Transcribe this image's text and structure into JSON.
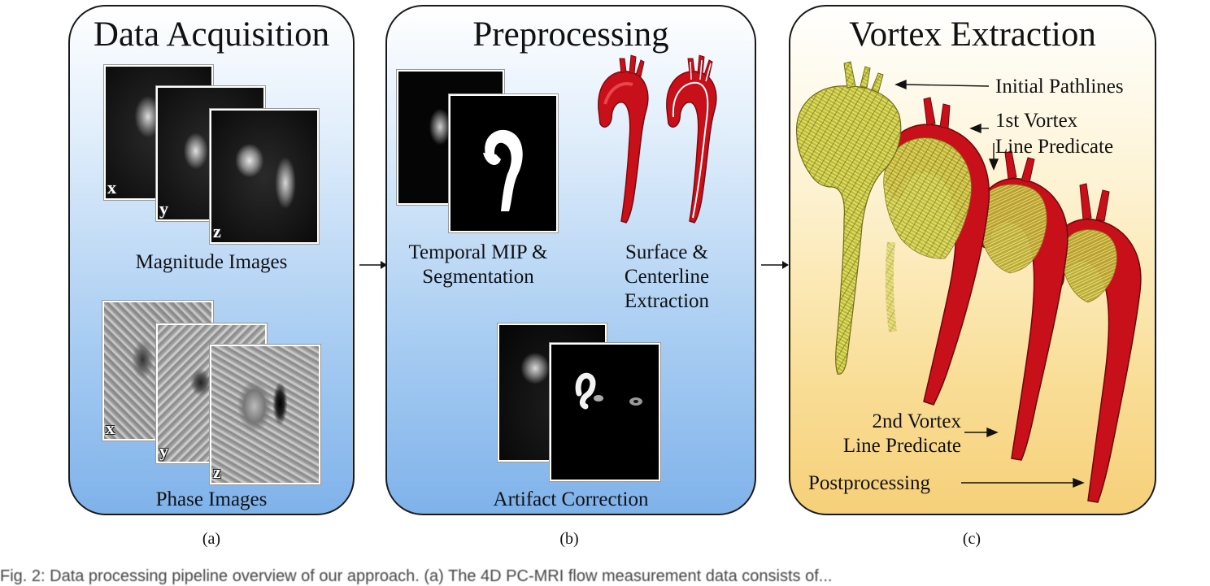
{
  "panels": {
    "a": {
      "title": "Data Acquisition",
      "magnitude_label": "Magnitude Images",
      "phase_label": "Phase Images",
      "magnitude_axes": [
        "x",
        "y",
        "z"
      ],
      "phase_axes": [
        "x",
        "y",
        "z"
      ],
      "caption": "(a)"
    },
    "b": {
      "title": "Preprocessing",
      "mip_label_1": "Temporal MIP &",
      "mip_label_2": "Segmentation",
      "surface_label_1": "Surface &",
      "surface_label_2": "Centerline",
      "surface_label_3": "Extraction",
      "artifact_label": "Artifact Correction",
      "caption": "(b)"
    },
    "c": {
      "title": "Vortex Extraction",
      "initial_label": "Initial Pathlines",
      "first_label_1": "1st Vortex",
      "first_label_2": "Line Predicate",
      "second_label_1": "2nd Vortex",
      "second_label_2": "Line Predicate",
      "post_label": "Postprocessing",
      "caption": "(c)"
    }
  },
  "colors": {
    "aorta_red": "#c8101a",
    "pathline_yellow": "#d8d64a",
    "panel_blue": "#7fb2ea",
    "panel_yellow": "#f6d07a"
  },
  "figure_caption": "Fig. 2: Data processing pipeline overview of our approach. (a) The 4D PC-MRI flow measurement data consists of..."
}
